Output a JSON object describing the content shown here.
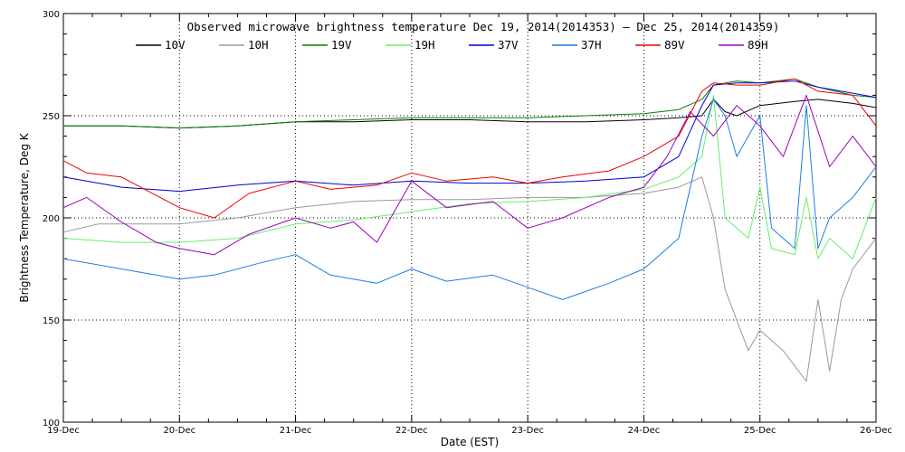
{
  "chart_data": {
    "type": "line",
    "title": "Observed microwave brightness temperature Dec 19, 2014(2014353) – Dec 25, 2014(2014359)",
    "xlabel": "Date (EST)",
    "ylabel": "Brightness Temperature, Deg K",
    "x_tick_labels": [
      "19-Dec",
      "20-Dec",
      "21-Dec",
      "22-Dec",
      "23-Dec",
      "24-Dec",
      "25-Dec",
      "26-Dec"
    ],
    "xlim": [
      0,
      7
    ],
    "x_unit": "days after 19-Dec",
    "ylim": [
      100,
      300
    ],
    "y_ticks": [
      100,
      150,
      200,
      250,
      300
    ],
    "grid": "dotted",
    "legend_position": "top",
    "series": [
      {
        "name": "10V",
        "color": "#000000",
        "x": [
          0,
          0.5,
          1,
          1.5,
          2,
          2.5,
          3,
          3.5,
          4,
          4.5,
          5,
          5.3,
          5.5,
          5.6,
          5.7,
          5.8,
          6,
          6.3,
          6.5,
          6.8,
          7
        ],
        "y": [
          245,
          245,
          244,
          245,
          247,
          247,
          248,
          248,
          247,
          247,
          248,
          249,
          250,
          258,
          252,
          250,
          255,
          257,
          258,
          256,
          254
        ]
      },
      {
        "name": "10H",
        "color": "#999999",
        "x": [
          0,
          0.3,
          1,
          1.5,
          2,
          2.5,
          3,
          3.5,
          4,
          4.5,
          5,
          5.3,
          5.5,
          5.6,
          5.7,
          5.9,
          6,
          6.2,
          6.4,
          6.5,
          6.6,
          6.7,
          6.8,
          7
        ],
        "y": [
          193,
          197,
          197,
          200,
          205,
          208,
          209,
          209,
          210,
          210,
          212,
          215,
          220,
          200,
          165,
          135,
          145,
          135,
          120,
          160,
          125,
          160,
          175,
          190
        ]
      },
      {
        "name": "19V",
        "color": "#008000",
        "x": [
          0,
          0.5,
          1,
          1.5,
          2,
          2.5,
          3,
          3.5,
          4,
          4.5,
          5,
          5.3,
          5.5,
          5.6,
          5.8,
          6,
          6.3,
          6.5,
          6.8,
          7
        ],
        "y": [
          245,
          245,
          244,
          245,
          247,
          248,
          249,
          249,
          249,
          250,
          251,
          253,
          258,
          265,
          267,
          266,
          268,
          264,
          260,
          259
        ]
      },
      {
        "name": "19H",
        "color": "#66ee66",
        "x": [
          0,
          0.5,
          1,
          1.5,
          2,
          2.5,
          3,
          3.5,
          4,
          4.5,
          5,
          5.3,
          5.5,
          5.6,
          5.7,
          5.9,
          6,
          6.1,
          6.3,
          6.4,
          6.5,
          6.6,
          6.8,
          7
        ],
        "y": [
          190,
          188,
          188,
          190,
          197,
          199,
          203,
          207,
          208,
          210,
          214,
          220,
          230,
          260,
          200,
          190,
          215,
          185,
          182,
          210,
          180,
          190,
          180,
          210
        ]
      },
      {
        "name": "37V",
        "color": "#0000cc",
        "x": [
          0,
          0.5,
          1,
          1.5,
          2,
          2.5,
          3,
          3.5,
          4,
          4.5,
          5,
          5.3,
          5.5,
          5.6,
          5.8,
          6,
          6.3,
          6.5,
          6.8,
          7
        ],
        "y": [
          220,
          215,
          213,
          216,
          218,
          216,
          218,
          217,
          217,
          218,
          220,
          230,
          255,
          265,
          266,
          266,
          267,
          264,
          261,
          259
        ]
      },
      {
        "name": "37H",
        "color": "#1a7fe0",
        "x": [
          0,
          0.5,
          1,
          1.3,
          1.7,
          2,
          2.3,
          2.7,
          3,
          3.3,
          3.7,
          4,
          4.3,
          4.7,
          5,
          5.3,
          5.5,
          5.6,
          5.7,
          5.8,
          6,
          6.1,
          6.3,
          6.4,
          6.5,
          6.6,
          6.8,
          7
        ],
        "y": [
          180,
          175,
          170,
          172,
          178,
          182,
          172,
          168,
          175,
          169,
          172,
          166,
          160,
          168,
          175,
          190,
          240,
          258,
          250,
          230,
          250,
          195,
          185,
          255,
          185,
          200,
          210,
          225
        ]
      },
      {
        "name": "89V",
        "color": "#ee0000",
        "x": [
          0,
          0.2,
          0.5,
          1,
          1.3,
          1.6,
          2,
          2.3,
          2.7,
          3,
          3.3,
          3.7,
          4,
          4.3,
          4.7,
          5,
          5.3,
          5.5,
          5.6,
          5.8,
          6,
          6.3,
          6.5,
          6.8,
          7
        ],
        "y": [
          228,
          222,
          220,
          205,
          200,
          212,
          218,
          214,
          216,
          222,
          218,
          220,
          217,
          220,
          223,
          230,
          240,
          262,
          266,
          265,
          265,
          268,
          262,
          260,
          245
        ]
      },
      {
        "name": "89H",
        "color": "#9900bb",
        "x": [
          0,
          0.2,
          0.5,
          0.8,
          1,
          1.3,
          1.6,
          2,
          2.3,
          2.5,
          2.7,
          3,
          3.3,
          3.7,
          4,
          4.3,
          4.7,
          5,
          5.2,
          5.4,
          5.6,
          5.8,
          6,
          6.2,
          6.4,
          6.6,
          6.8,
          7
        ],
        "y": [
          205,
          210,
          198,
          188,
          185,
          182,
          192,
          200,
          195,
          198,
          188,
          218,
          205,
          208,
          195,
          200,
          210,
          215,
          230,
          252,
          240,
          255,
          245,
          230,
          260,
          225,
          240,
          225
        ]
      }
    ]
  }
}
